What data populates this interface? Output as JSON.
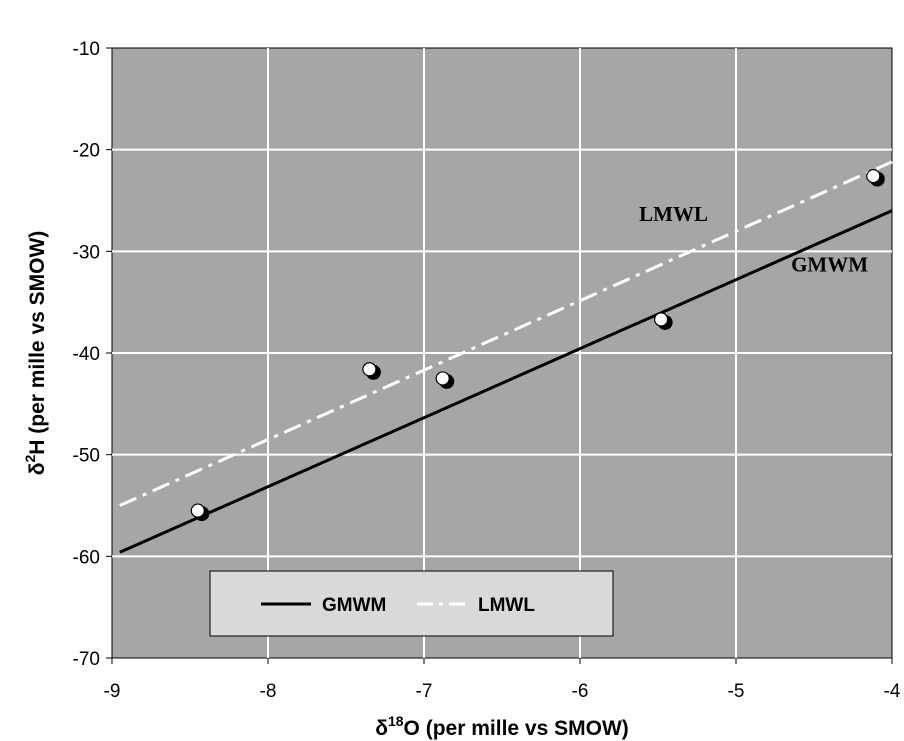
{
  "chart_data": {
    "type": "scatter",
    "title": "",
    "xlabel": {
      "delta": "δ",
      "sup": "18",
      "rest": "O (per mille vs SMOW)"
    },
    "ylabel": {
      "delta": "δ",
      "sup": "2",
      "rest": "H (per mille vs SMOW)"
    },
    "xlim": [
      -9,
      -4
    ],
    "ylim": [
      -70,
      -10
    ],
    "x_ticks": [
      "-9",
      "-8",
      "-7",
      "-6",
      "-5",
      "-4"
    ],
    "y_ticks": [
      "-10",
      "-20",
      "-30",
      "-40",
      "-50",
      "-60",
      "-70"
    ],
    "grid": true,
    "background_color": "#a6a6a6",
    "points": [
      {
        "x": -8.45,
        "y": -55.5
      },
      {
        "x": -7.35,
        "y": -41.6
      },
      {
        "x": -6.88,
        "y": -42.5
      },
      {
        "x": -5.48,
        "y": -36.7
      },
      {
        "x": -4.12,
        "y": -22.6
      }
    ],
    "lines": [
      {
        "name": "GMWM",
        "x": [
          -8.95,
          -4.0
        ],
        "y": [
          -59.6,
          -26.0
        ],
        "color": "#000000",
        "style": "solid"
      },
      {
        "name": "LMWL",
        "x": [
          -8.95,
          -4.0
        ],
        "y": [
          -55.0,
          -21.2
        ],
        "color": "#ffffff",
        "style": "dash-dot"
      }
    ],
    "annotations": [
      {
        "text": "LMWL",
        "x": -5.4,
        "y": -27.0
      },
      {
        "text": "GMWM",
        "x": -4.4,
        "y": -32.0
      }
    ],
    "legend": {
      "position": "bottom-left",
      "items": [
        {
          "label": "GMWM",
          "style": "solid",
          "color": "#000000"
        },
        {
          "label": "LMWL",
          "style": "dash-dot",
          "color": "#ffffff"
        }
      ]
    }
  }
}
